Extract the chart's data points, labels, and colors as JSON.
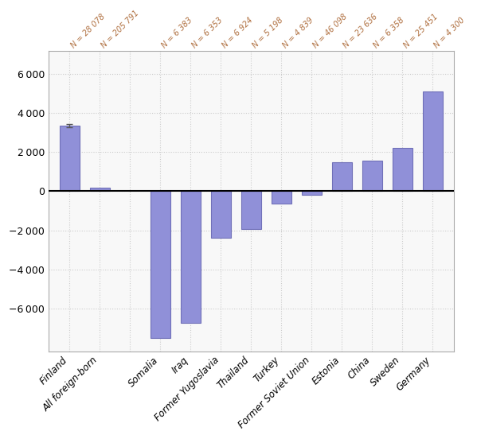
{
  "categories": [
    "Finland",
    "All foreign-born",
    "",
    "Somalia",
    "Iraq",
    "Former Yugoslavia",
    "Thailand",
    "Turkey",
    "Former Soviet Union",
    "Estonia",
    "China",
    "Sweden",
    "Germany"
  ],
  "values": [
    3350,
    200,
    null,
    -7500,
    -6750,
    -2400,
    -1950,
    -650,
    -200,
    1500,
    1550,
    2200,
    5100
  ],
  "n_labels": [
    "N = 28 078",
    "N = 205 791",
    "",
    "N = 6 383",
    "N = 6 353",
    "N = 6 924",
    "N = 5 198",
    "N = 4 839",
    "N = 46 098",
    "N = 23 636",
    "N = 6 358",
    "N = 25 451",
    "N = 4 300"
  ],
  "bar_color": "#9090d8",
  "bar_edge_color": "#7070b8",
  "error_bar_value": 90,
  "ylim": [
    -8200,
    7200
  ],
  "yticks": [
    -6000,
    -4000,
    -2000,
    0,
    2000,
    4000,
    6000
  ],
  "background_color": "#ffffff",
  "plot_bg_color": "#f8f8f8",
  "grid_color": "#cccccc",
  "n_label_color": "#b07040",
  "n_label_fontsize": 7,
  "bar_width": 0.65,
  "fig_width": 5.99,
  "fig_height": 5.52,
  "border_color": "#aaaaaa"
}
